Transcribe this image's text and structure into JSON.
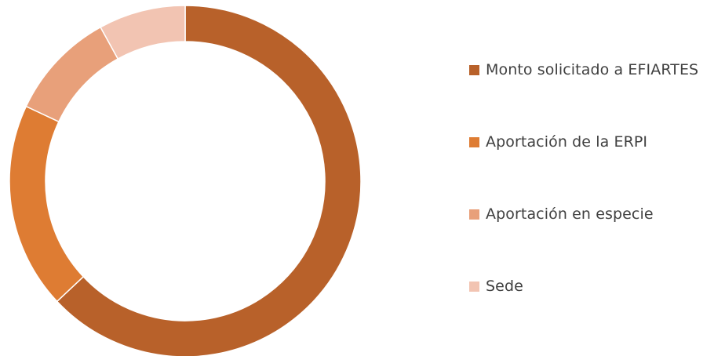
{
  "chart_data": {
    "type": "pie",
    "variant": "donut",
    "title": "",
    "legend_position": "right",
    "series": [
      {
        "name": "Monto solicitado a EFIARTES",
        "value": 63,
        "color": "#B8612A"
      },
      {
        "name": "Aportación de la ERPI",
        "value": 19,
        "color": "#DE7C33"
      },
      {
        "name": "Aportación en especie",
        "value": 10,
        "color": "#E8A07A"
      },
      {
        "name": "Sede",
        "value": 8,
        "color": "#F2C4B2"
      }
    ]
  }
}
